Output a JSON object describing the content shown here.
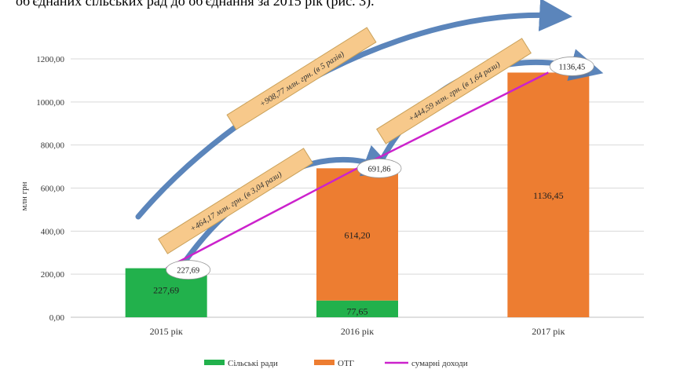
{
  "caption": "об'єднаних сільських рад до об'єднання за 2015 рік (рис. 3).",
  "chart_data": {
    "type": "bar",
    "stacked": true,
    "categories": [
      "2015 рік",
      "2016 рік",
      "2017 рік"
    ],
    "ylabel": "млн грн",
    "ylim": [
      0,
      1200
    ],
    "yticks": [
      "0,00",
      "200,00",
      "400,00",
      "600,00",
      "800,00",
      "1000,00",
      "1200,00"
    ],
    "series": [
      {
        "name": "Сільські ради",
        "color": "#22b14c",
        "values": [
          227.69,
          77.65,
          0
        ],
        "labels": [
          "227,69",
          "77,65",
          ""
        ]
      },
      {
        "name": "ОТГ",
        "color": "#ed7d31",
        "values": [
          0,
          614.2,
          1136.45
        ],
        "labels": [
          "",
          "614,20",
          "1136,45"
        ]
      }
    ],
    "line": {
      "name": "сумарні доходи",
      "color": "#cc22cc",
      "values": [
        227.69,
        691.86,
        1136.45
      ],
      "labels": [
        "227,69",
        "691,86",
        "1136,45"
      ]
    },
    "annotations": [
      "+464,17 млн. грн. (в 3,04 рази)",
      "+444,59 млн. грн. (в 1,64 рази)",
      "+908,77 млн. грн. (в 5 разів)"
    ],
    "legend": "bottom",
    "grid": true
  }
}
